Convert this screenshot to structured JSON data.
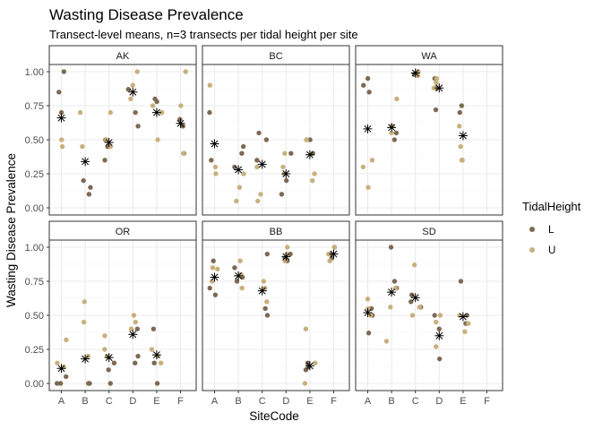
{
  "chart_data": {
    "type": "scatter",
    "title": "Wasting Disease Prevalence",
    "subtitle": "Transect-level means, n=3 transects per tidal height per site",
    "xlabel": "SiteCode",
    "ylabel": "Wasting Disease Prevalence",
    "categories": [
      "A",
      "B",
      "C",
      "D",
      "E",
      "F"
    ],
    "ylim": [
      0,
      1
    ],
    "yticks": [
      "0.00",
      "0.25",
      "0.50",
      "0.75",
      "1.00"
    ],
    "grid": true,
    "legend": {
      "title": "TidalHeight",
      "position": "right",
      "entries": [
        {
          "label": "L",
          "color": "#7d6a55"
        },
        {
          "label": "U",
          "color": "#c8b07e"
        }
      ]
    },
    "mean_marker": "asterisk",
    "panels": [
      {
        "region": "AK",
        "points": [
          {
            "site": "A",
            "tide": "L",
            "values": [
              1.0,
              0.85,
              0.7
            ]
          },
          {
            "site": "A",
            "tide": "U",
            "values": [
              0.5,
              0.45
            ]
          },
          {
            "site": "B",
            "tide": "L",
            "values": [
              0.2,
              0.15,
              0.1
            ]
          },
          {
            "site": "B",
            "tide": "U",
            "values": [
              0.7,
              0.45
            ]
          },
          {
            "site": "C",
            "tide": "L",
            "values": [
              0.5,
              0.45,
              0.35
            ]
          },
          {
            "site": "C",
            "tide": "U",
            "values": [
              0.7,
              0.5,
              0.45
            ]
          },
          {
            "site": "D",
            "tide": "L",
            "values": [
              0.87,
              0.7,
              0.6
            ]
          },
          {
            "site": "D",
            "tide": "U",
            "values": [
              1.0,
              0.9,
              0.8
            ]
          },
          {
            "site": "E",
            "tide": "L",
            "values": [
              0.8,
              0.78,
              0.7
            ]
          },
          {
            "site": "E",
            "tide": "U",
            "values": [
              0.75,
              0.7,
              0.5
            ]
          },
          {
            "site": "F",
            "tide": "L",
            "values": [
              0.65,
              0.6,
              0.4
            ]
          },
          {
            "site": "F",
            "tide": "U",
            "values": [
              1.0,
              0.75,
              0.4
            ]
          }
        ],
        "means": [
          {
            "site": "A",
            "value": 0.66
          },
          {
            "site": "B",
            "value": 0.34
          },
          {
            "site": "C",
            "value": 0.48
          },
          {
            "site": "D",
            "value": 0.85
          },
          {
            "site": "E",
            "value": 0.7
          },
          {
            "site": "F",
            "value": 0.62
          }
        ]
      },
      {
        "region": "BC",
        "points": [
          {
            "site": "A",
            "tide": "L",
            "values": [
              0.7,
              0.35
            ]
          },
          {
            "site": "A",
            "tide": "U",
            "values": [
              0.9,
              0.3,
              0.25
            ]
          },
          {
            "site": "B",
            "tide": "L",
            "values": [
              0.45,
              0.4,
              0.3
            ]
          },
          {
            "site": "B",
            "tide": "U",
            "values": [
              0.25,
              0.15,
              0.05
            ]
          },
          {
            "site": "C",
            "tide": "L",
            "values": [
              0.55,
              0.5,
              0.35
            ]
          },
          {
            "site": "C",
            "tide": "U",
            "values": [
              0.3,
              0.1,
              0.05
            ]
          },
          {
            "site": "D",
            "tide": "L",
            "values": [
              0.4,
              0.2,
              0.1
            ]
          },
          {
            "site": "D",
            "tide": "U",
            "values": [
              0.4,
              0.3,
              0.25
            ]
          },
          {
            "site": "E",
            "tide": "L",
            "values": [
              0.5,
              0.5,
              0.4
            ]
          },
          {
            "site": "E",
            "tide": "U",
            "values": [
              0.5,
              0.25,
              0.2
            ]
          }
        ],
        "means": [
          {
            "site": "A",
            "value": 0.47
          },
          {
            "site": "B",
            "value": 0.28
          },
          {
            "site": "C",
            "value": 0.32
          },
          {
            "site": "D",
            "value": 0.25
          },
          {
            "site": "E",
            "value": 0.39
          }
        ]
      },
      {
        "region": "WA",
        "points": [
          {
            "site": "A",
            "tide": "L",
            "values": [
              0.95,
              0.9,
              0.85
            ]
          },
          {
            "site": "A",
            "tide": "U",
            "values": [
              0.35,
              0.3,
              0.15
            ]
          },
          {
            "site": "B",
            "tide": "L",
            "values": [
              0.6,
              0.55,
              0.5
            ]
          },
          {
            "site": "B",
            "tide": "U",
            "values": [
              0.8,
              0.6,
              0.55
            ]
          },
          {
            "site": "C",
            "tide": "L",
            "values": [
              1.0,
              0.98
            ]
          },
          {
            "site": "C",
            "tide": "U",
            "values": [
              1.0,
              0.98,
              0.97
            ]
          },
          {
            "site": "D",
            "tide": "L",
            "values": [
              0.95,
              0.88,
              0.72
            ]
          },
          {
            "site": "D",
            "tide": "U",
            "values": [
              0.95,
              0.92,
              0.88
            ]
          },
          {
            "site": "E",
            "tide": "L",
            "values": [
              0.75,
              0.7,
              0.35
            ]
          },
          {
            "site": "E",
            "tide": "U",
            "values": [
              0.6,
              0.45,
              0.35
            ]
          }
        ],
        "means": [
          {
            "site": "A",
            "value": 0.58
          },
          {
            "site": "B",
            "value": 0.59
          },
          {
            "site": "C",
            "value": 0.99
          },
          {
            "site": "D",
            "value": 0.88
          },
          {
            "site": "E",
            "value": 0.53
          }
        ]
      },
      {
        "region": "OR",
        "points": [
          {
            "site": "A",
            "tide": "L",
            "values": [
              0.05,
              0.0,
              0.0
            ]
          },
          {
            "site": "A",
            "tide": "U",
            "values": [
              0.32,
              0.15,
              0.12
            ]
          },
          {
            "site": "B",
            "tide": "L",
            "values": [
              0.0,
              0.0
            ]
          },
          {
            "site": "B",
            "tide": "U",
            "values": [
              0.6,
              0.45,
              0.2
            ]
          },
          {
            "site": "C",
            "tide": "L",
            "values": [
              0.15,
              0.1,
              0.0
            ]
          },
          {
            "site": "C",
            "tide": "U",
            "values": [
              0.35,
              0.25,
              0.2
            ]
          },
          {
            "site": "D",
            "tide": "L",
            "values": [
              0.4,
              0.2,
              0.15
            ]
          },
          {
            "site": "D",
            "tide": "U",
            "values": [
              0.5,
              0.45,
              0.4
            ]
          },
          {
            "site": "E",
            "tide": "L",
            "values": [
              0.4,
              0.15,
              0.0
            ]
          },
          {
            "site": "E",
            "tide": "U",
            "values": [
              0.25,
              0.2,
              0.15
            ]
          }
        ],
        "means": [
          {
            "site": "A",
            "value": 0.11
          },
          {
            "site": "B",
            "value": 0.18
          },
          {
            "site": "C",
            "value": 0.19
          },
          {
            "site": "D",
            "value": 0.36
          },
          {
            "site": "E",
            "value": 0.21
          }
        ]
      },
      {
        "region": "BB",
        "points": [
          {
            "site": "A",
            "tide": "L",
            "values": [
              0.9,
              0.7,
              0.65
            ]
          },
          {
            "site": "A",
            "tide": "U",
            "values": [
              0.85,
              0.84,
              0.75
            ]
          },
          {
            "site": "B",
            "tide": "L",
            "values": [
              0.85,
              0.78,
              0.75
            ]
          },
          {
            "site": "B",
            "tide": "U",
            "values": [
              0.9,
              0.8,
              0.7
            ]
          },
          {
            "site": "C",
            "tide": "L",
            "values": [
              0.95,
              0.55,
              0.5
            ]
          },
          {
            "site": "C",
            "tide": "U",
            "values": [
              0.75,
              0.7,
              0.6
            ]
          },
          {
            "site": "D",
            "tide": "L",
            "values": [
              0.95,
              0.92,
              0.9
            ]
          },
          {
            "site": "D",
            "tide": "U",
            "values": [
              1.0,
              0.95,
              0.9
            ]
          },
          {
            "site": "E",
            "tide": "L",
            "values": [
              0.15,
              0.12,
              0.1
            ]
          },
          {
            "site": "E",
            "tide": "U",
            "values": [
              0.4,
              0.15,
              0.0
            ]
          },
          {
            "site": "F",
            "tide": "L",
            "values": [
              1.0,
              0.95,
              0.92
            ]
          },
          {
            "site": "F",
            "tide": "U",
            "values": [
              1.0,
              0.95,
              0.9
            ]
          }
        ],
        "means": [
          {
            "site": "A",
            "value": 0.78
          },
          {
            "site": "B",
            "value": 0.79
          },
          {
            "site": "C",
            "value": 0.68
          },
          {
            "site": "D",
            "value": 0.93
          },
          {
            "site": "E",
            "value": 0.13
          },
          {
            "site": "F",
            "value": 0.95
          }
        ]
      },
      {
        "region": "SD",
        "points": [
          {
            "site": "A",
            "tide": "L",
            "values": [
              0.55,
              0.5,
              0.37
            ]
          },
          {
            "site": "A",
            "tide": "U",
            "values": [
              0.62,
              0.55,
              0.5
            ]
          },
          {
            "site": "B",
            "tide": "L",
            "values": [
              1.0,
              0.75,
              0.7
            ]
          },
          {
            "site": "B",
            "tide": "U",
            "values": [
              0.7,
              0.56,
              0.31
            ]
          },
          {
            "site": "C",
            "tide": "L",
            "values": [
              0.65,
              0.6,
              0.56
            ]
          },
          {
            "site": "C",
            "tide": "U",
            "values": [
              0.87,
              0.56,
              0.5
            ]
          },
          {
            "site": "D",
            "tide": "L",
            "values": [
              0.5,
              0.4,
              0.18
            ]
          },
          {
            "site": "D",
            "tide": "U",
            "values": [
              0.5,
              0.45,
              0.27
            ]
          },
          {
            "site": "E",
            "tide": "L",
            "values": [
              0.75,
              0.5,
              0.44
            ]
          },
          {
            "site": "E",
            "tide": "U",
            "values": [
              0.5,
              0.44,
              0.38
            ]
          }
        ],
        "means": [
          {
            "site": "A",
            "value": 0.52
          },
          {
            "site": "B",
            "value": 0.67
          },
          {
            "site": "C",
            "value": 0.63
          },
          {
            "site": "D",
            "value": 0.35
          },
          {
            "site": "E",
            "value": 0.49
          }
        ]
      }
    ]
  }
}
